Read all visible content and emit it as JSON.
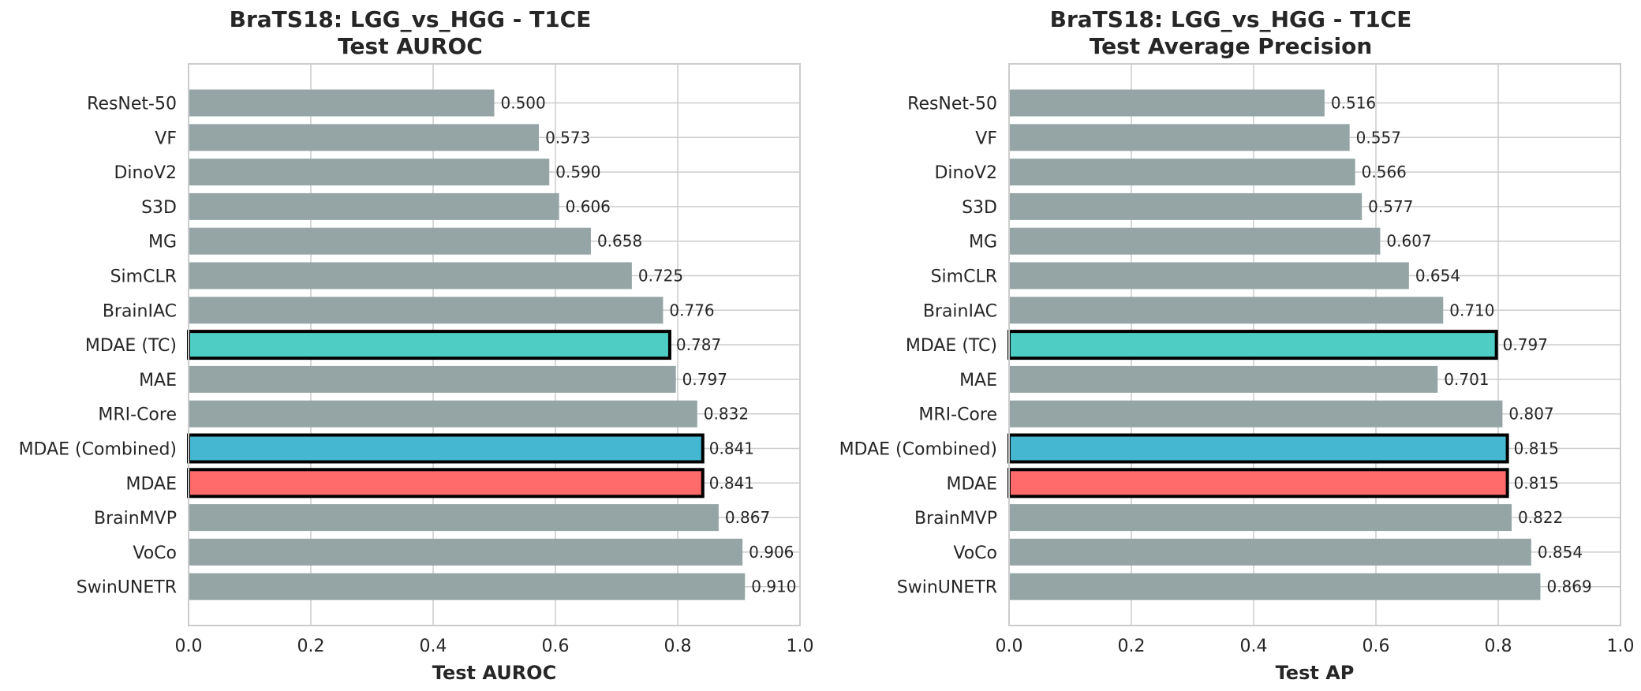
{
  "chart_data": [
    {
      "type": "bar",
      "orientation": "horizontal",
      "title": "BraTS18: LGG_vs_HGG - T1CE",
      "subtitle": "Test AUROC",
      "xlabel": "Test AUROC",
      "ylabel": "",
      "xlim": [
        0.0,
        1.0
      ],
      "xticks": [
        "0.0",
        "0.2",
        "0.4",
        "0.6",
        "0.8",
        "1.0"
      ],
      "grid": true,
      "categories": [
        "ResNet-50",
        "VF",
        "DinoV2",
        "S3D",
        "MG",
        "SimCLR",
        "BrainIAC",
        "MDAE (TC)",
        "MAE",
        "MRI-Core",
        "MDAE (Combined)",
        "MDAE",
        "BrainMVP",
        "VoCo",
        "SwinUNETR"
      ],
      "values": [
        0.5,
        0.573,
        0.59,
        0.606,
        0.658,
        0.725,
        0.776,
        0.787,
        0.797,
        0.832,
        0.841,
        0.841,
        0.867,
        0.906,
        0.91
      ],
      "value_labels": [
        "0.500",
        "0.573",
        "0.590",
        "0.606",
        "0.658",
        "0.725",
        "0.776",
        "0.787",
        "0.797",
        "0.832",
        "0.841",
        "0.841",
        "0.867",
        "0.906",
        "0.910"
      ]
    },
    {
      "type": "bar",
      "orientation": "horizontal",
      "title": "BraTS18: LGG_vs_HGG - T1CE",
      "subtitle": "Test Average Precision",
      "xlabel": "Test AP",
      "ylabel": "",
      "xlim": [
        0.0,
        1.0
      ],
      "xticks": [
        "0.0",
        "0.2",
        "0.4",
        "0.6",
        "0.8",
        "1.0"
      ],
      "grid": true,
      "categories": [
        "ResNet-50",
        "VF",
        "DinoV2",
        "S3D",
        "MG",
        "SimCLR",
        "BrainIAC",
        "MDAE (TC)",
        "MAE",
        "MRI-Core",
        "MDAE (Combined)",
        "MDAE",
        "BrainMVP",
        "VoCo",
        "SwinUNETR"
      ],
      "values": [
        0.516,
        0.557,
        0.566,
        0.577,
        0.607,
        0.654,
        0.71,
        0.797,
        0.701,
        0.807,
        0.815,
        0.815,
        0.822,
        0.854,
        0.869
      ],
      "value_labels": [
        "0.516",
        "0.557",
        "0.566",
        "0.577",
        "0.607",
        "0.654",
        "0.710",
        "0.797",
        "0.701",
        "0.807",
        "0.815",
        "0.815",
        "0.822",
        "0.854",
        "0.869"
      ]
    }
  ],
  "colors": {
    "default_bar": "#95a5a5",
    "MDAE (TC)": "#4ecdc4",
    "MDAE (Combined)": "#45b7d1",
    "MDAE": "#ff6b6b",
    "highlight_edge": "#000000",
    "grid": "#cccccc",
    "text": "#262626"
  },
  "highlighted": [
    "MDAE (TC)",
    "MDAE (Combined)",
    "MDAE"
  ]
}
